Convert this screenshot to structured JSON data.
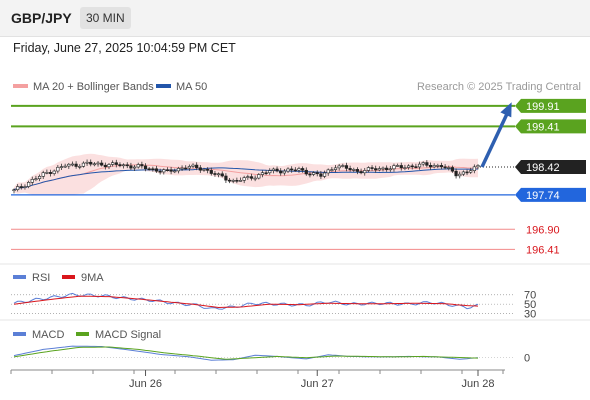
{
  "header": {
    "pair": "GBP/JPY",
    "timeframe": "30 MIN",
    "datetime": "Friday, June 27, 2025 10:04:59 PM CET"
  },
  "colors": {
    "bollinger": "#f4a0a0",
    "ma50": "#2255aa",
    "resistance": "#5aa31f",
    "support": "#2266dd",
    "support_light": "#f28a8a",
    "last_price": "#222222",
    "rsi": "#5b7fd6",
    "rsi_ma": "#d9161c",
    "macd": "#5b7fd6",
    "macd_signal": "#5aa31f",
    "arrow": "#2e5fb0"
  },
  "chart_data": [
    {
      "type": "candlestick",
      "legend": [
        {
          "name": "MA 20 + Bollinger Bands",
          "color": "#f4a0a0"
        },
        {
          "name": "MA 50",
          "color": "#2255aa"
        }
      ],
      "source": "Research © 2025 Trading Central",
      "ylim": [
        196.2,
        200.15
      ],
      "x_ticks": [
        {
          "label": "Jun 26",
          "index": 36
        },
        {
          "label": "Jun 27",
          "index": 83
        },
        {
          "label": "Jun 28",
          "index": 127
        }
      ],
      "n_candles": 128,
      "close_anchors": [
        [
          0,
          197.84
        ],
        [
          4,
          198.05
        ],
        [
          9,
          198.28
        ],
        [
          14,
          198.45
        ],
        [
          20,
          198.5
        ],
        [
          28,
          198.47
        ],
        [
          34,
          198.43
        ],
        [
          42,
          198.3
        ],
        [
          47,
          198.43
        ],
        [
          52,
          198.37
        ],
        [
          56,
          198.2
        ],
        [
          60,
          198.08
        ],
        [
          64,
          198.14
        ],
        [
          70,
          198.32
        ],
        [
          78,
          198.35
        ],
        [
          84,
          198.2
        ],
        [
          88,
          198.45
        ],
        [
          94,
          198.32
        ],
        [
          100,
          198.38
        ],
        [
          106,
          198.42
        ],
        [
          112,
          198.47
        ],
        [
          117,
          198.45
        ],
        [
          121,
          198.25
        ],
        [
          124,
          198.3
        ],
        [
          127,
          198.42
        ]
      ],
      "levels": [
        {
          "label": "199.91",
          "value": 199.91,
          "role": "resistance"
        },
        {
          "label": "199.41",
          "value": 199.41,
          "role": "resistance"
        },
        {
          "label": "198.42",
          "value": 198.42,
          "role": "last"
        },
        {
          "label": "197.74",
          "value": 197.74,
          "role": "support"
        },
        {
          "label": "196.90",
          "value": 196.9,
          "role": "support_light"
        },
        {
          "label": "196.41",
          "value": 196.41,
          "role": "support_light"
        }
      ],
      "arrow": {
        "from": 198.42,
        "to": 199.91
      }
    },
    {
      "type": "line",
      "legend": [
        {
          "name": "RSI",
          "color": "#5b7fd6"
        },
        {
          "name": "9MA",
          "color": "#d9161c"
        }
      ],
      "ylim": [
        25,
        80
      ],
      "y_ticks": [
        {
          "label": "70",
          "value": 70
        },
        {
          "label": "50",
          "value": 50
        },
        {
          "label": "30",
          "value": 30
        }
      ],
      "rsi_anchors": [
        [
          0,
          52
        ],
        [
          8,
          62
        ],
        [
          16,
          70
        ],
        [
          24,
          68
        ],
        [
          30,
          63
        ],
        [
          38,
          58
        ],
        [
          44,
          52
        ],
        [
          50,
          48
        ],
        [
          54,
          40
        ],
        [
          60,
          44
        ],
        [
          66,
          52
        ],
        [
          72,
          50
        ],
        [
          80,
          48
        ],
        [
          86,
          55
        ],
        [
          92,
          50
        ],
        [
          100,
          52
        ],
        [
          108,
          50
        ],
        [
          114,
          54
        ],
        [
          120,
          48
        ],
        [
          124,
          43
        ],
        [
          127,
          47
        ]
      ],
      "ma_anchors": [
        [
          0,
          50
        ],
        [
          10,
          60
        ],
        [
          18,
          67
        ],
        [
          26,
          66
        ],
        [
          34,
          61
        ],
        [
          42,
          55
        ],
        [
          50,
          49
        ],
        [
          56,
          43
        ],
        [
          62,
          44
        ],
        [
          70,
          50
        ],
        [
          78,
          49
        ],
        [
          86,
          52
        ],
        [
          94,
          51
        ],
        [
          102,
          51
        ],
        [
          110,
          52
        ],
        [
          118,
          51
        ],
        [
          124,
          47
        ],
        [
          127,
          46
        ]
      ]
    },
    {
      "type": "line",
      "legend": [
        {
          "name": "MACD",
          "color": "#5b7fd6"
        },
        {
          "name": "MACD Signal",
          "color": "#5aa31f"
        }
      ],
      "ylim": [
        -0.25,
        0.38
      ],
      "y_ticks": [
        {
          "label": "0",
          "value": 0
        }
      ],
      "macd_anchors": [
        [
          0,
          0.05
        ],
        [
          8,
          0.2
        ],
        [
          16,
          0.28
        ],
        [
          24,
          0.27
        ],
        [
          32,
          0.18
        ],
        [
          40,
          0.08
        ],
        [
          48,
          0.02
        ],
        [
          54,
          -0.06
        ],
        [
          60,
          -0.05
        ],
        [
          66,
          0.06
        ],
        [
          72,
          0.03
        ],
        [
          80,
          -0.03
        ],
        [
          86,
          0.07
        ],
        [
          92,
          0.03
        ],
        [
          100,
          0.02
        ],
        [
          108,
          0.03
        ],
        [
          116,
          0.02
        ],
        [
          122,
          -0.04
        ],
        [
          127,
          0.0
        ]
      ],
      "signal_anchors": [
        [
          0,
          0.02
        ],
        [
          10,
          0.16
        ],
        [
          18,
          0.25
        ],
        [
          26,
          0.26
        ],
        [
          34,
          0.2
        ],
        [
          42,
          0.11
        ],
        [
          50,
          0.04
        ],
        [
          58,
          -0.04
        ],
        [
          64,
          -0.01
        ],
        [
          72,
          0.03
        ],
        [
          80,
          0.0
        ],
        [
          88,
          0.04
        ],
        [
          96,
          0.03
        ],
        [
          104,
          0.02
        ],
        [
          112,
          0.03
        ],
        [
          120,
          0.01
        ],
        [
          127,
          -0.01
        ]
      ]
    }
  ]
}
